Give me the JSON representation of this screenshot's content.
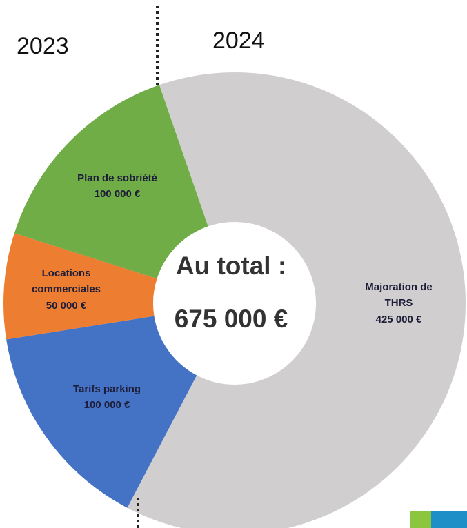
{
  "chart_data": {
    "type": "donut",
    "annotations": [
      "2023",
      "2024"
    ],
    "center_text": [
      "Au total :",
      "675 000 €"
    ],
    "categories": [
      "Majoration de THRS",
      "Tarifs parking",
      "Locations commerciales",
      "Plan de sobriété"
    ],
    "values": [
      425000,
      100000,
      50000,
      100000
    ],
    "value_labels": [
      "425 000 €",
      "100 000 €",
      "50 000 €",
      "100 000 €"
    ],
    "colors": [
      "#d0cece",
      "#4472c4",
      "#ed7d31",
      "#70ad47"
    ]
  }
}
